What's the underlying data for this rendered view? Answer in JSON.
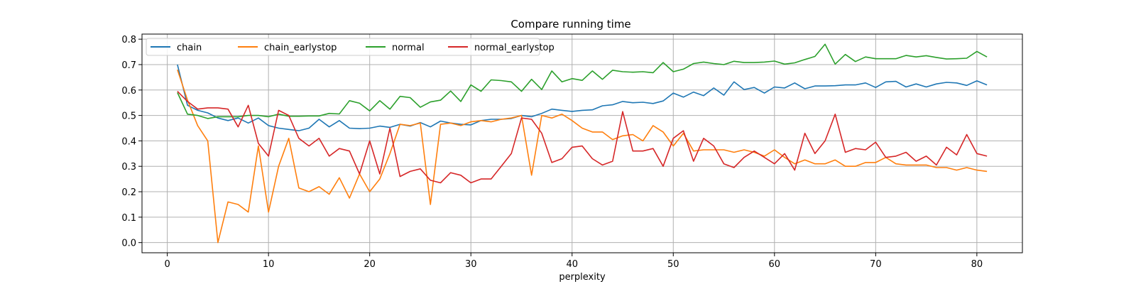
{
  "chart_data": {
    "type": "line",
    "title": "Compare running time",
    "xlabel": "perplexity",
    "ylabel": "",
    "xlim": [
      -2.5,
      84.5
    ],
    "ylim": [
      -0.04,
      0.82
    ],
    "xticks": [
      0,
      10,
      20,
      30,
      40,
      50,
      60,
      70,
      80
    ],
    "yticks": [
      0.0,
      0.1,
      0.2,
      0.3,
      0.4,
      0.5,
      0.6,
      0.7,
      0.8
    ],
    "xtick_labels": [
      "0",
      "10",
      "20",
      "30",
      "40",
      "50",
      "60",
      "70",
      "80"
    ],
    "ytick_labels": [
      "0.0",
      "0.1",
      "0.2",
      "0.3",
      "0.4",
      "0.5",
      "0.6",
      "0.7",
      "0.8"
    ],
    "grid": true,
    "legend_position": "top-left",
    "x": [
      1,
      2,
      3,
      4,
      5,
      6,
      7,
      8,
      9,
      10,
      11,
      12,
      13,
      14,
      15,
      16,
      17,
      18,
      19,
      20,
      21,
      22,
      23,
      24,
      25,
      26,
      27,
      28,
      29,
      30,
      31,
      32,
      33,
      34,
      35,
      36,
      37,
      38,
      39,
      40,
      41,
      42,
      43,
      44,
      45,
      46,
      47,
      48,
      49,
      50,
      51,
      52,
      53,
      54,
      55,
      56,
      57,
      58,
      59,
      60,
      61,
      62,
      63,
      64,
      65,
      66,
      67,
      68,
      69,
      70,
      71,
      72,
      73,
      74,
      75,
      76,
      77,
      78,
      79,
      80,
      81
    ],
    "series": [
      {
        "name": "chain",
        "color": "#1f77b4",
        "values": [
          0.7,
          0.54,
          0.52,
          0.51,
          0.49,
          0.48,
          0.49,
          0.47,
          0.49,
          0.46,
          0.45,
          0.445,
          0.44,
          0.45,
          0.485,
          0.455,
          0.48,
          0.45,
          0.448,
          0.45,
          0.458,
          0.453,
          0.465,
          0.458,
          0.472,
          0.455,
          0.478,
          0.47,
          0.465,
          0.463,
          0.48,
          0.485,
          0.485,
          0.488,
          0.5,
          0.495,
          0.508,
          0.525,
          0.52,
          0.516,
          0.52,
          0.522,
          0.538,
          0.542,
          0.555,
          0.55,
          0.552,
          0.547,
          0.557,
          0.588,
          0.572,
          0.592,
          0.578,
          0.608,
          0.58,
          0.632,
          0.602,
          0.61,
          0.588,
          0.612,
          0.608,
          0.628,
          0.605,
          0.616,
          0.616,
          0.617,
          0.62,
          0.62,
          0.628,
          0.61,
          0.632,
          0.634,
          0.612,
          0.624,
          0.612,
          0.624,
          0.63,
          0.628,
          0.618,
          0.636,
          0.62
        ]
      },
      {
        "name": "chain_earlystop",
        "color": "#ff7f0e",
        "values": [
          0.68,
          0.56,
          0.46,
          0.4,
          0.0,
          0.16,
          0.15,
          0.12,
          0.38,
          0.12,
          0.3,
          0.41,
          0.215,
          0.2,
          0.22,
          0.19,
          0.255,
          0.175,
          0.27,
          0.2,
          0.25,
          0.35,
          0.465,
          0.46,
          0.47,
          0.15,
          0.465,
          0.47,
          0.46,
          0.475,
          0.48,
          0.475,
          0.485,
          0.49,
          0.5,
          0.265,
          0.5,
          0.49,
          0.505,
          0.48,
          0.45,
          0.435,
          0.435,
          0.405,
          0.42,
          0.425,
          0.4,
          0.46,
          0.435,
          0.38,
          0.43,
          0.36,
          0.365,
          0.365,
          0.365,
          0.355,
          0.365,
          0.355,
          0.34,
          0.365,
          0.335,
          0.31,
          0.325,
          0.31,
          0.31,
          0.325,
          0.3,
          0.3,
          0.315,
          0.315,
          0.335,
          0.31,
          0.305,
          0.305,
          0.305,
          0.295,
          0.295,
          0.285,
          0.295,
          0.285,
          0.28
        ]
      },
      {
        "name": "normal",
        "color": "#2ca02c",
        "values": [
          0.59,
          0.505,
          0.5,
          0.488,
          0.495,
          0.495,
          0.495,
          0.5,
          0.5,
          0.495,
          0.505,
          0.497,
          0.497,
          0.498,
          0.498,
          0.508,
          0.506,
          0.558,
          0.548,
          0.518,
          0.558,
          0.525,
          0.575,
          0.57,
          0.532,
          0.553,
          0.56,
          0.596,
          0.555,
          0.62,
          0.595,
          0.64,
          0.637,
          0.632,
          0.595,
          0.642,
          0.602,
          0.675,
          0.632,
          0.645,
          0.638,
          0.675,
          0.642,
          0.678,
          0.672,
          0.67,
          0.672,
          0.668,
          0.708,
          0.672,
          0.682,
          0.704,
          0.71,
          0.704,
          0.7,
          0.713,
          0.708,
          0.708,
          0.71,
          0.714,
          0.702,
          0.707,
          0.72,
          0.732,
          0.78,
          0.702,
          0.74,
          0.712,
          0.73,
          0.723,
          0.723,
          0.723,
          0.736,
          0.73,
          0.735,
          0.728,
          0.722,
          0.723,
          0.725,
          0.752,
          0.73
        ]
      },
      {
        "name": "normal_earlystop",
        "color": "#d62728",
        "values": [
          0.595,
          0.555,
          0.525,
          0.53,
          0.53,
          0.525,
          0.455,
          0.54,
          0.39,
          0.34,
          0.52,
          0.5,
          0.41,
          0.38,
          0.41,
          0.34,
          0.37,
          0.36,
          0.27,
          0.4,
          0.27,
          0.45,
          0.26,
          0.28,
          0.29,
          0.245,
          0.235,
          0.275,
          0.265,
          0.235,
          0.25,
          0.25,
          0.3,
          0.35,
          0.49,
          0.485,
          0.43,
          0.315,
          0.33,
          0.375,
          0.38,
          0.33,
          0.305,
          0.32,
          0.515,
          0.36,
          0.36,
          0.37,
          0.3,
          0.41,
          0.44,
          0.32,
          0.41,
          0.38,
          0.31,
          0.295,
          0.335,
          0.36,
          0.335,
          0.31,
          0.35,
          0.285,
          0.43,
          0.35,
          0.4,
          0.505,
          0.355,
          0.37,
          0.365,
          0.395,
          0.335,
          0.34,
          0.355,
          0.32,
          0.34,
          0.305,
          0.375,
          0.345,
          0.425,
          0.35,
          0.34
        ]
      }
    ]
  }
}
